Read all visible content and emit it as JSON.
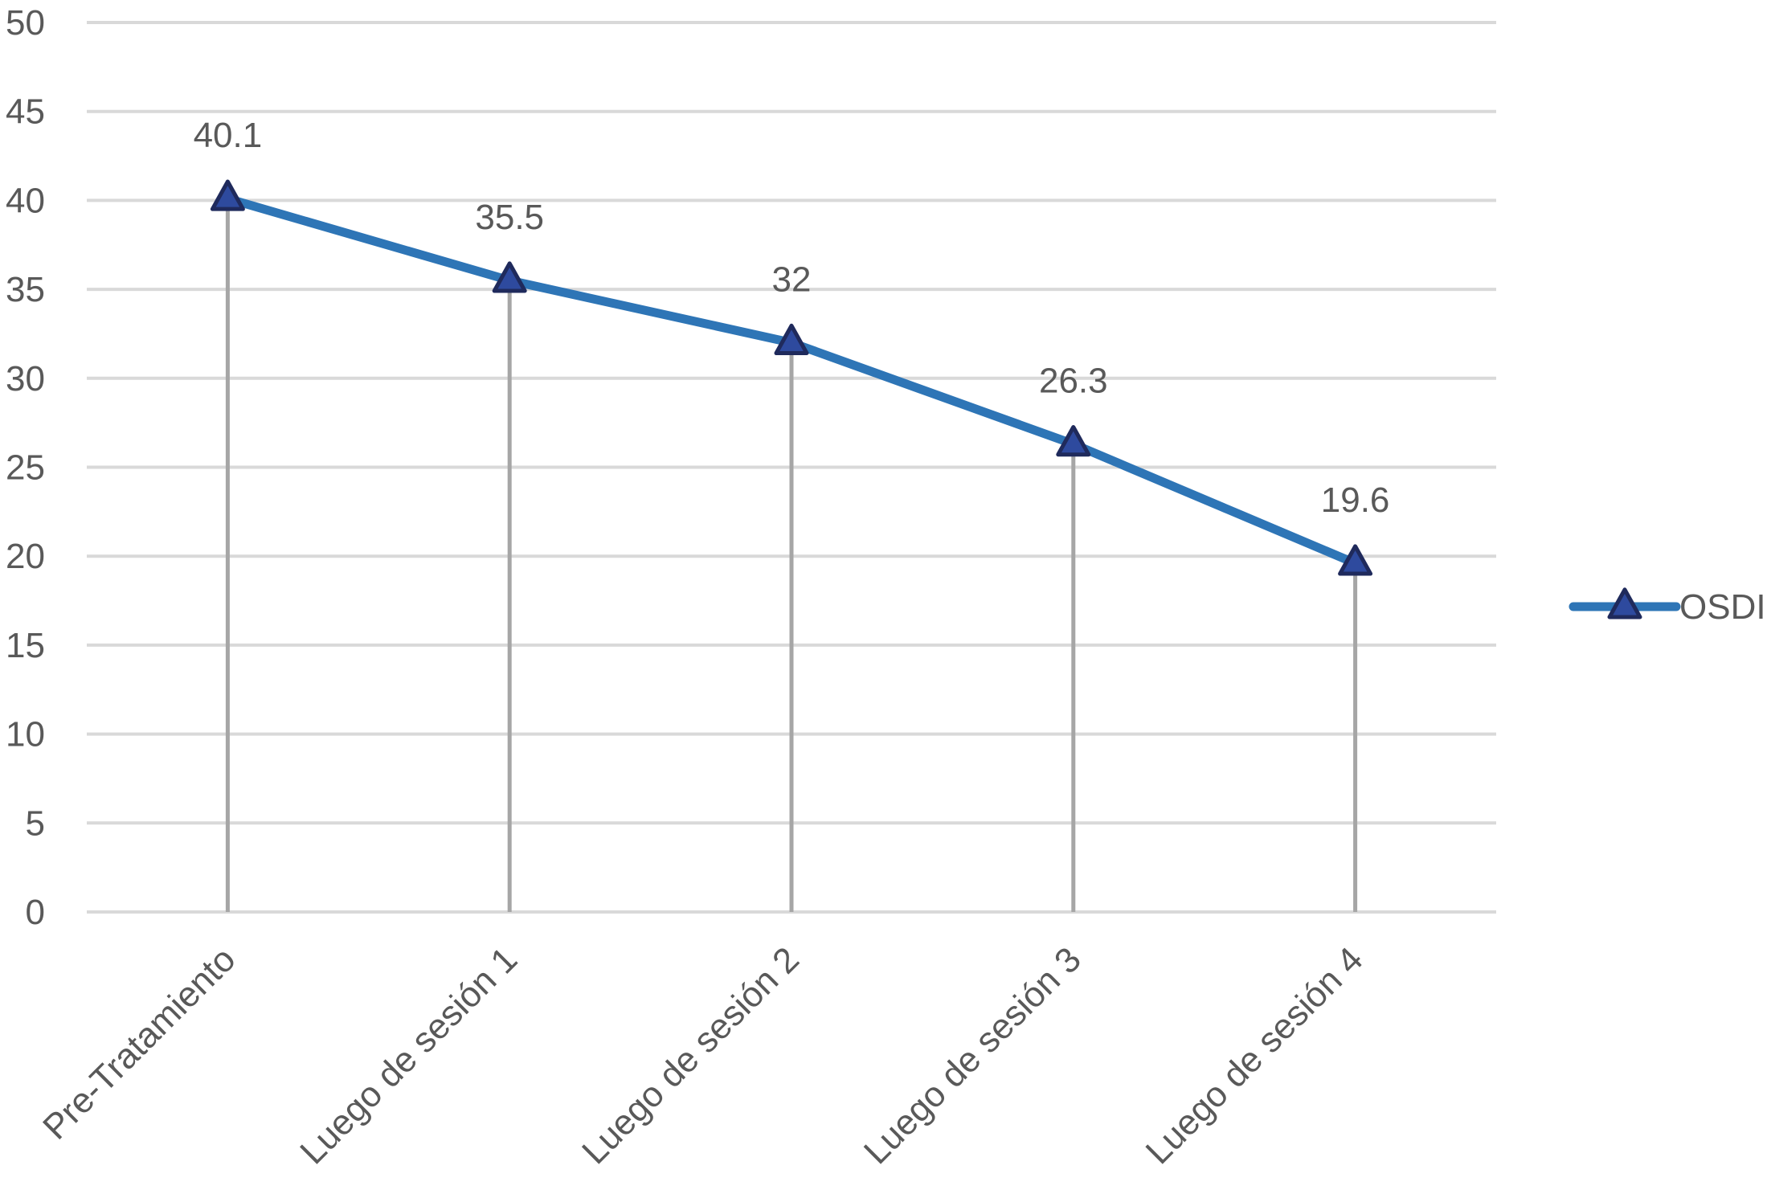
{
  "chart_data": {
    "type": "line",
    "title": "",
    "xlabel": "",
    "ylabel": "",
    "categories": [
      "Pre-Tratamiento",
      "Luego de sesión 1",
      "Luego de sesión 2",
      "Luego de sesión 3",
      "Luego de sesión 4"
    ],
    "series": [
      {
        "name": "OSDI",
        "values": [
          40.1,
          35.5,
          32,
          26.3,
          19.6
        ],
        "labels": [
          "40.1",
          "35.5",
          "32",
          "26.3",
          "19.6"
        ]
      }
    ],
    "ylim": [
      0,
      50
    ],
    "yticks": [
      0,
      5,
      10,
      15,
      20,
      25,
      30,
      35,
      40,
      45,
      50
    ],
    "grid": true,
    "drop_lines": true,
    "legend_position": "right",
    "colors": {
      "line": "#2e75b6",
      "marker_fill": "#2e4a9e",
      "marker_edge": "#1f2a5c",
      "grid": "#d9d9d9",
      "drop_line": "#a6a6a6",
      "text": "#595959"
    },
    "marker": "triangle"
  }
}
